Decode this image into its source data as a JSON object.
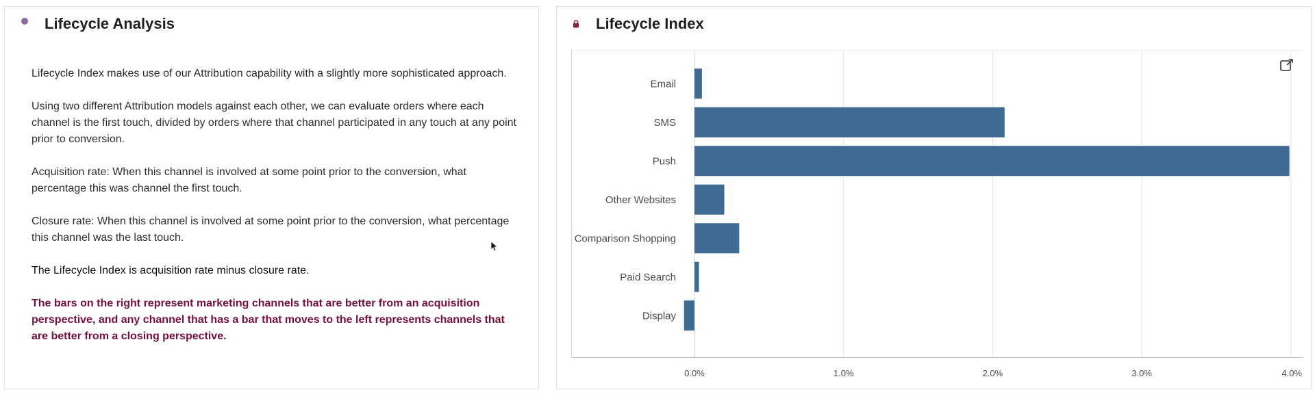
{
  "colors": {
    "accent_purple": "#8b6aa6",
    "lock_magenta": "#8a1d4a",
    "emphasis_text": "#7a0f3a",
    "bar": "#3e6a94",
    "grid": "#e4e4e4"
  },
  "left_panel": {
    "title": "Lifecycle Analysis",
    "icon": "circle-dot-icon",
    "paragraphs": [
      "Lifecycle Index makes use of our Attribution capability with a slightly more sophisticated approach.",
      "Using two different Attribution models against each other, we can evaluate orders where each channel is the first touch, divided by orders where that channel participated in any touch at any point prior to conversion.",
      "Acquisition rate: When this channel is involved at some point prior to the conversion, what percentage this was channel the first touch.",
      "Closure rate: When this channel is involved at some point prior to the conversion, what percentage this channel was the last touch.",
      "The Lifecycle Index is acquisition rate minus closure rate.",
      "The bars on the right represent marketing channels that are better from an acquisition perspective, and any channel that has a bar that moves to the left represents channels that are better from a closing perspective."
    ]
  },
  "right_panel": {
    "title": "Lifecycle Index",
    "icon": "lock-icon",
    "expand_icon": "expand-icon"
  },
  "chart_data": {
    "type": "bar",
    "orientation": "horizontal",
    "categories": [
      "Email",
      "SMS",
      "Push",
      "Other Websites",
      "Comparison Shopping",
      "Paid Search",
      "Display"
    ],
    "values": [
      0.05,
      2.08,
      3.99,
      0.2,
      0.3,
      0.03,
      -0.07
    ],
    "xlim": [
      -0.83,
      4.0
    ],
    "ticks": [
      0,
      1,
      2,
      3,
      4
    ],
    "tick_labels": [
      "0.0%",
      "1.0%",
      "2.0%",
      "3.0%",
      "4.0%"
    ],
    "grid": "vertical",
    "legend": "none"
  }
}
